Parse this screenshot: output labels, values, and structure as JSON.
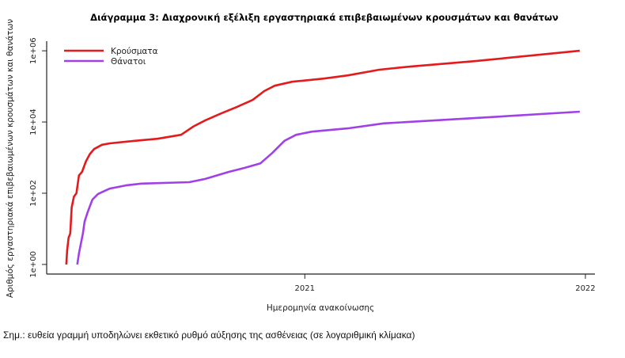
{
  "chart_data": {
    "type": "line",
    "title": "Διάγραμμα 3: Διαχρονική εξέλιξη εργαστηριακά επιβεβαιωμένων κρουσμάτων και θανάτων",
    "xlabel": "Ημερομηνία ανακοίνωσης",
    "ylabel": "Αριθμός εργαστηριακά επιβεβαιωμένων κρουσμάτων και θανάτων",
    "x_unit": "decimal year",
    "y_scale": "log10",
    "xlim": [
      2020.08,
      2022.034
    ],
    "ylim_log10": [
      -0.27,
      6.27
    ],
    "x_ticks": [
      {
        "value": 2021,
        "label": "2021"
      },
      {
        "value": 2022,
        "label": "2022"
      }
    ],
    "y_ticks": [
      {
        "value_log10": 0,
        "label": "1e+00"
      },
      {
        "value_log10": 2,
        "label": "1e+02"
      },
      {
        "value_log10": 4,
        "label": "1e+04"
      },
      {
        "value_log10": 6,
        "label": "1e+06"
      }
    ],
    "legend_position": "top-left",
    "series": [
      {
        "name": "Κρούσματα",
        "color": "#e41a1c",
        "x": [
          2020.15,
          2020.153,
          2020.158,
          2020.164,
          2020.169,
          2020.177,
          2020.186,
          2020.195,
          2020.206,
          2020.22,
          2020.234,
          2020.249,
          2020.277,
          2020.305,
          2020.39,
          2020.475,
          2020.559,
          2020.602,
          2020.644,
          2020.701,
          2020.757,
          2020.814,
          2020.856,
          2020.893,
          2020.955,
          2021.068,
          2021.153,
          2021.266,
          2021.379,
          2021.605,
          2021.98
        ],
        "y_log10": [
          0,
          0.4,
          0.75,
          0.87,
          1.6,
          1.9,
          2.0,
          2.5,
          2.6,
          2.9,
          3.1,
          3.24,
          3.36,
          3.4,
          3.47,
          3.53,
          3.64,
          3.87,
          4.04,
          4.24,
          4.42,
          4.62,
          4.87,
          5.02,
          5.13,
          5.22,
          5.31,
          5.47,
          5.56,
          5.71,
          6.0
        ]
      },
      {
        "name": "Θάνατοι",
        "color": "#a040e8",
        "x": [
          2020.189,
          2020.195,
          2020.209,
          2020.215,
          2020.226,
          2020.243,
          2020.263,
          2020.305,
          2020.362,
          2020.418,
          2020.588,
          2020.644,
          2020.729,
          2020.785,
          2020.842,
          2020.884,
          2020.927,
          2020.969,
          2021.025,
          2021.153,
          2021.28,
          2021.605,
          2021.98
        ],
        "y_log10": [
          0,
          0.31,
          0.87,
          1.2,
          1.47,
          1.82,
          1.98,
          2.13,
          2.22,
          2.27,
          2.31,
          2.4,
          2.6,
          2.71,
          2.84,
          3.13,
          3.47,
          3.64,
          3.73,
          3.82,
          3.96,
          4.11,
          4.29
        ]
      }
    ]
  },
  "note": "Σημ.: ευθεία γραμμή υποδηλώνει εκθετικό ρυθμό αύξησης της ασθένειας (σε λογαριθμική κλίμακα)"
}
